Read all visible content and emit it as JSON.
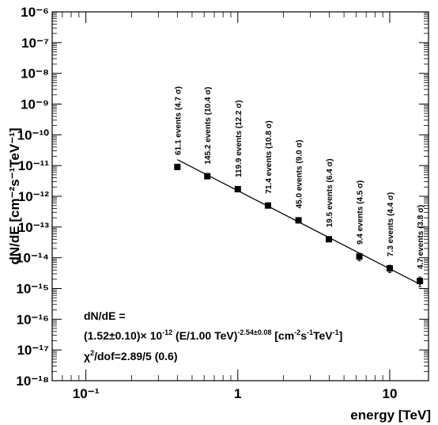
{
  "chart_data": {
    "type": "scatter",
    "title": "",
    "xlabel": "energy [TeV]",
    "ylabel": "dN/dE [cm⁻²s⁻¹TeV⁻¹]",
    "xscale": "log",
    "yscale": "log",
    "xlim": [
      0.06,
      18
    ],
    "ylim": [
      1e-18,
      1e-06
    ],
    "grid": false,
    "x_tick_labels": [
      "10⁻¹",
      "1",
      "10"
    ],
    "x_tick_values": [
      0.1,
      1,
      10
    ],
    "y_tick_labels": [
      "10⁻¹⁸",
      "10⁻¹⁷",
      "10⁻¹⁶",
      "10⁻¹⁵",
      "10⁻¹⁴",
      "10⁻¹³",
      "10⁻¹²",
      "10⁻¹¹",
      "10⁻¹⁰",
      "10⁻⁹",
      "10⁻⁸",
      "10⁻⁷",
      "10⁻⁶"
    ],
    "y_tick_values": [
      1e-18,
      1e-17,
      1e-16,
      1e-15,
      1e-14,
      1e-13,
      1e-12,
      1e-11,
      1e-10,
      1e-09,
      1e-08,
      1e-07,
      1e-06
    ],
    "series": [
      {
        "points": [
          {
            "x": 0.4,
            "y": 9e-12,
            "yerr_up": 1.5e-12,
            "yerr_down": 1.5e-12,
            "label": "61.1 events (4.7 σ)"
          },
          {
            "x": 0.63,
            "y": 4.5e-12,
            "yerr_up": 4e-13,
            "yerr_down": 4e-13,
            "label": "145.2 events (10.4 σ)"
          },
          {
            "x": 1.0,
            "y": 1.7e-12,
            "yerr_up": 1.5e-13,
            "yerr_down": 1.5e-13,
            "label": "119.9 events (12.2 σ)"
          },
          {
            "x": 1.58,
            "y": 5e-13,
            "yerr_up": 5e-14,
            "yerr_down": 5e-14,
            "label": "71.4 events (10.8 σ)"
          },
          {
            "x": 2.51,
            "y": 1.65e-13,
            "yerr_up": 2e-14,
            "yerr_down": 2e-14,
            "label": "45.0 events (9.0 σ)"
          },
          {
            "x": 3.98,
            "y": 4e-14,
            "yerr_up": 7e-15,
            "yerr_down": 7e-15,
            "label": "19.5 events (6.4 σ)"
          },
          {
            "x": 6.31,
            "y": 1.1e-14,
            "yerr_up": 3e-15,
            "yerr_down": 3e-15,
            "label": "9.4 events (4.5 σ)"
          },
          {
            "x": 10.0,
            "y": 4.5e-15,
            "yerr_up": 1.2e-15,
            "yerr_down": 1.2e-15,
            "label": "7.3 events (4.4 σ)"
          },
          {
            "x": 15.8,
            "y": 1.75e-15,
            "yerr_up": 6e-16,
            "yerr_down": 6e-16,
            "label": "4.7 events (3.8 σ)"
          }
        ]
      }
    ],
    "fit": {
      "norm": 1.52e-12,
      "e0": 1.0,
      "index": -2.54,
      "x_range": [
        0.4,
        16
      ],
      "text_line1": "dN/dE =",
      "text_line2_a": "(1.52±0.10)× 10",
      "text_line2_a_sup": "-12",
      "text_line2_b": " (E/1.00 TeV)",
      "text_line2_b_sup": "-2.54±0.08",
      "text_line2_c": " [cm",
      "text_line2_c_sup1": "-2",
      "text_line2_d": "s",
      "text_line2_d_sup": "-1",
      "text_line2_e": "TeV",
      "text_line2_e_sup": "-1",
      "text_line2_f": "]",
      "text_line3_a": "χ",
      "text_line3_a_sup": "2",
      "text_line3_b": "/dof=2.89/5 (0.6)"
    }
  }
}
